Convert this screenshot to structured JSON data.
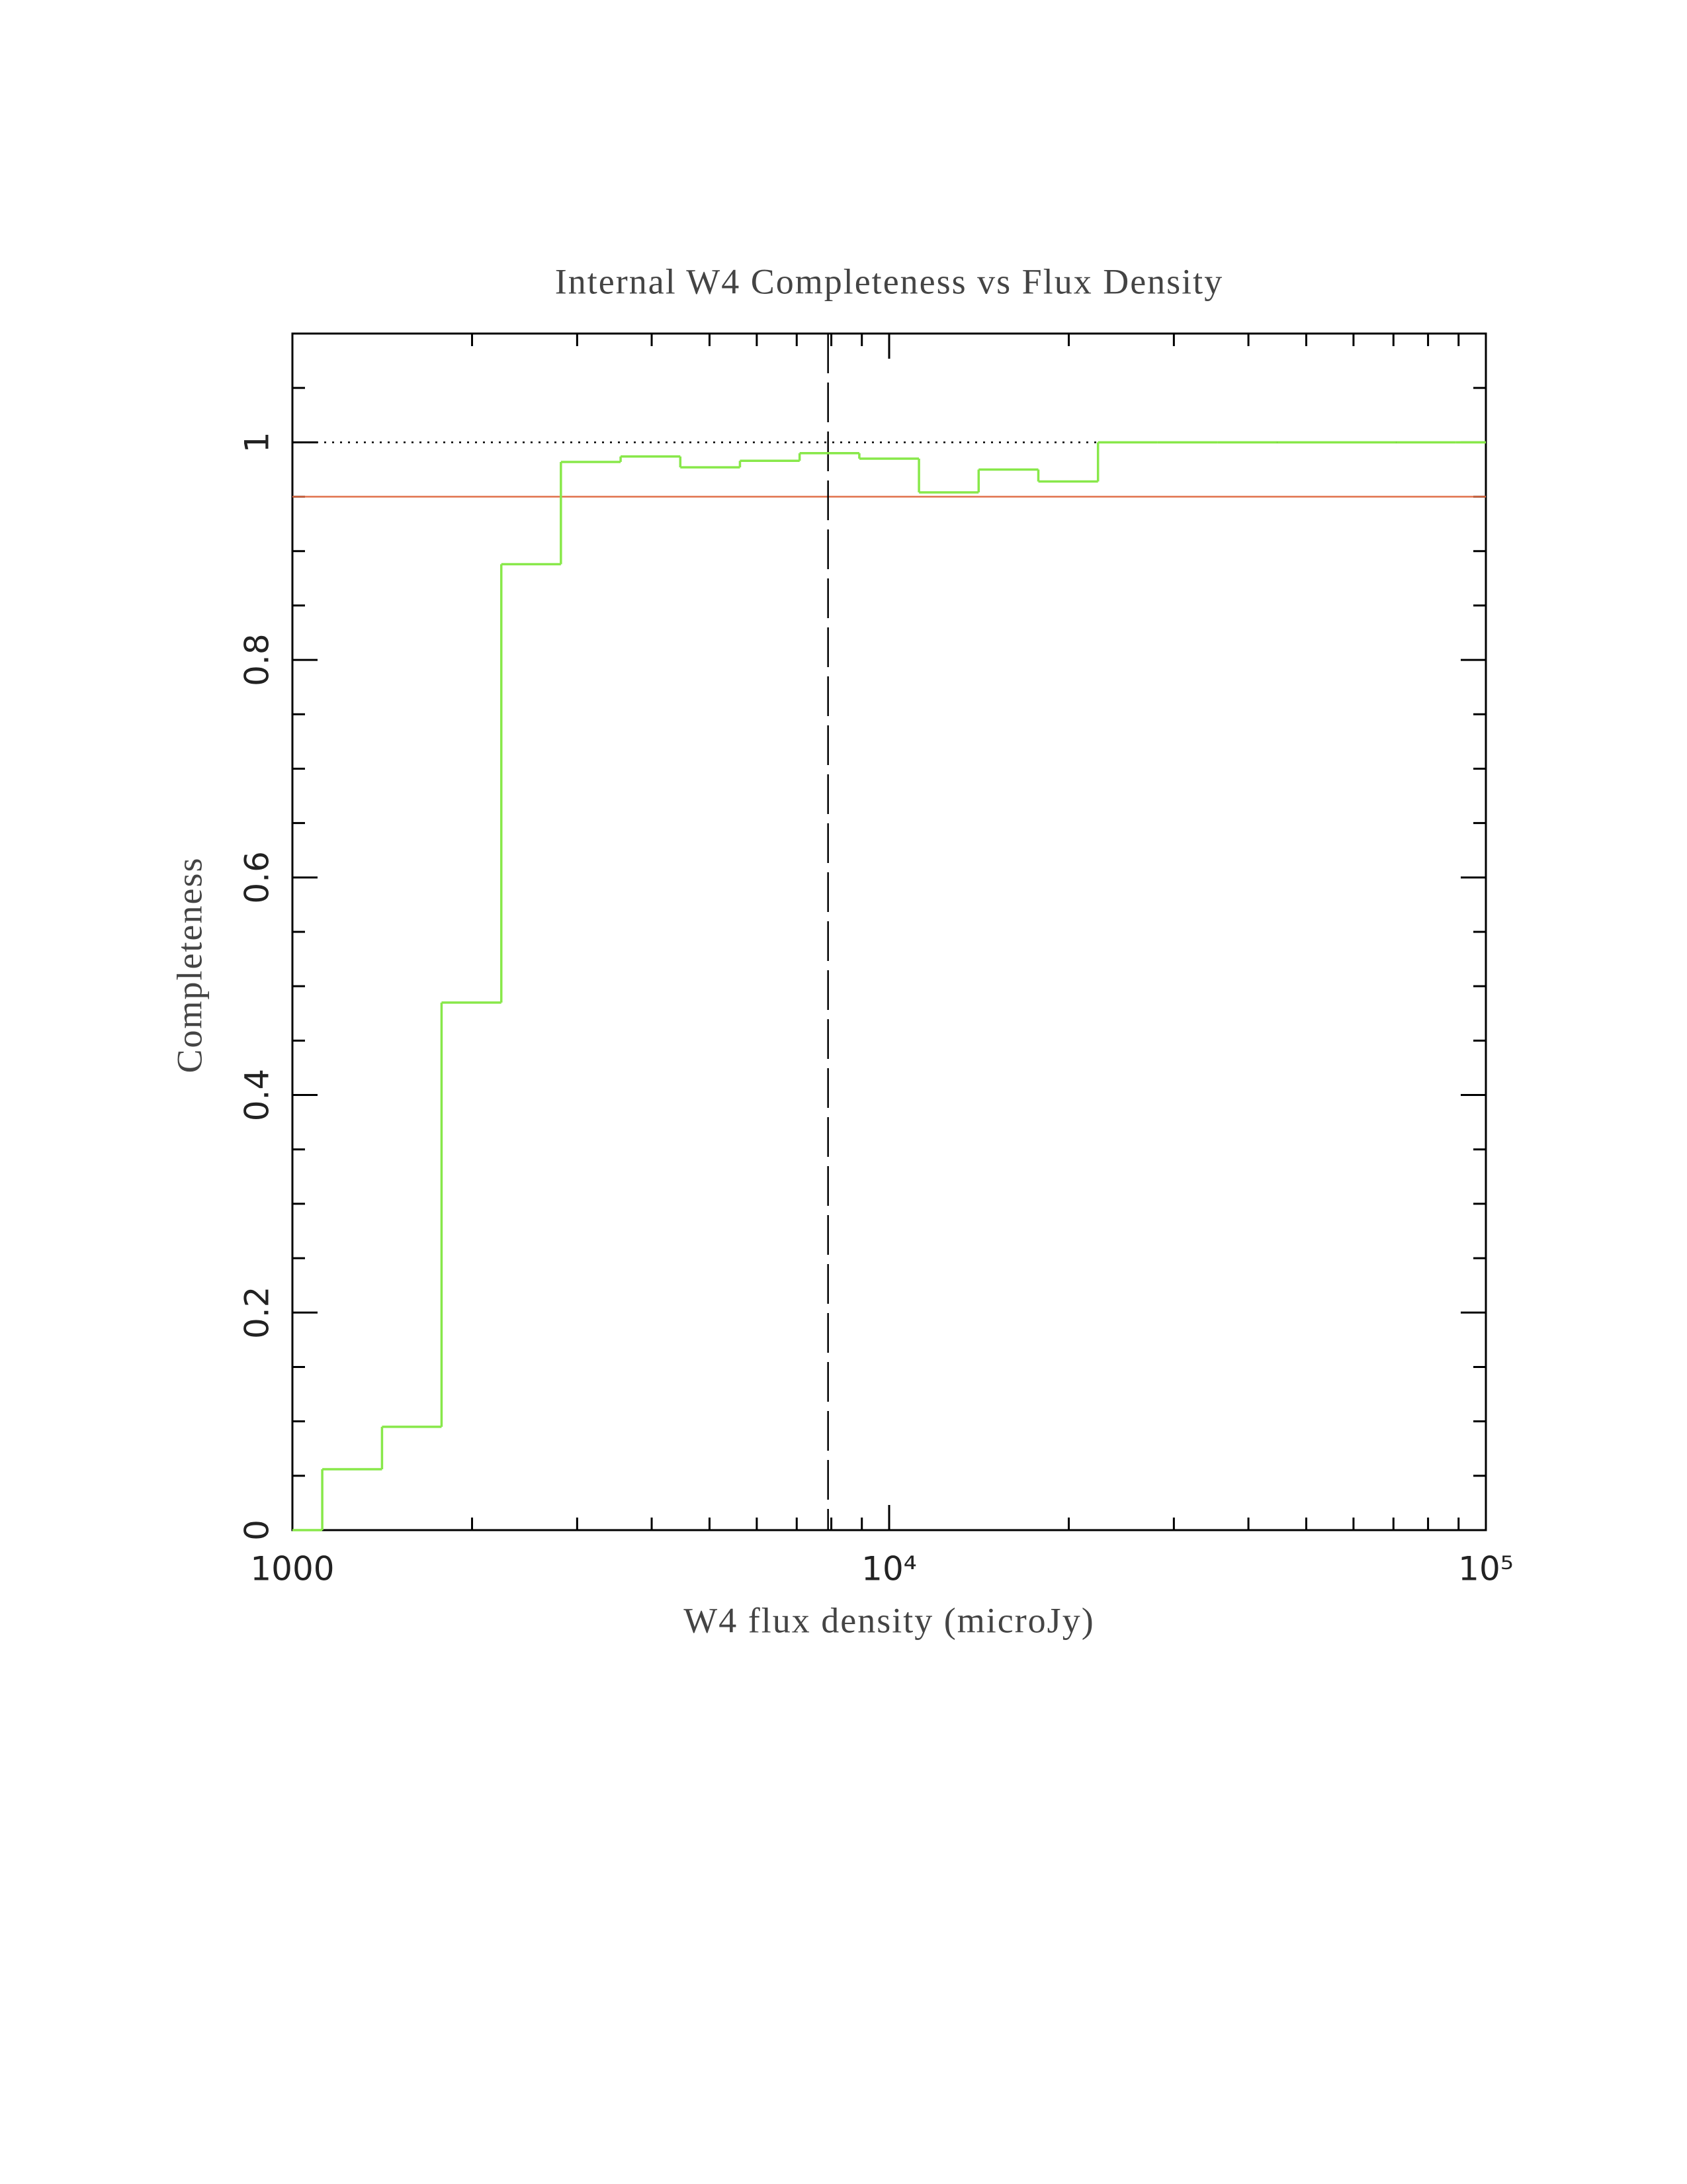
{
  "chart_data": {
    "type": "histogram",
    "title": "Internal W4 Completeness vs Flux Density",
    "x_label": "W4 flux density (microJy)",
    "y_label": "Completeness",
    "bins": [
      1000,
      1122,
      1413,
      1778,
      2239,
      2818,
      3548,
      4467,
      5623,
      7079,
      8913,
      11220,
      14125,
      17783,
      22387,
      28184,
      35481,
      44668,
      56234,
      70795,
      89125,
      100000
    ],
    "values": [
      0,
      0.056,
      0.095,
      0.485,
      0.888,
      0.982,
      0.987,
      0.977,
      0.983,
      0.99,
      0.985,
      0.954,
      0.975,
      0.964,
      1,
      1,
      1,
      1,
      1,
      1,
      1
    ],
    "color": "#88e84a",
    "xscale": "log",
    "xlim": [
      1000,
      100000
    ],
    "ylim": [
      0,
      1.1
    ],
    "xticks": [
      1000,
      {
        "value": 10000,
        "label": "10⁴"
      },
      {
        "value": 100000,
        "label": "10⁵"
      }
    ],
    "xminor_ticks": [
      2000,
      3000,
      4000,
      5000,
      6000,
      7000,
      8000,
      9000,
      20000,
      30000,
      40000,
      50000,
      60000,
      70000,
      80000,
      90000
    ],
    "yticks": [
      0,
      0.2,
      0.4,
      0.6,
      0.8,
      1
    ],
    "yminor_ticks": [
      0.05,
      0.1,
      0.15,
      0.25,
      0.3,
      0.35,
      0.45,
      0.5,
      0.55,
      0.65,
      0.7,
      0.75,
      0.85,
      0.9,
      0.95,
      1.05
    ],
    "reference_lines": [
      {
        "orientation": "horizontal",
        "value": 1,
        "style": "dotted",
        "color": "#000000"
      },
      {
        "orientation": "horizontal",
        "value": 0.95,
        "style": "solid",
        "color": "#e0704a"
      },
      {
        "orientation": "vertical",
        "value": 7900,
        "style": "dashed",
        "color": "#000000"
      }
    ]
  }
}
